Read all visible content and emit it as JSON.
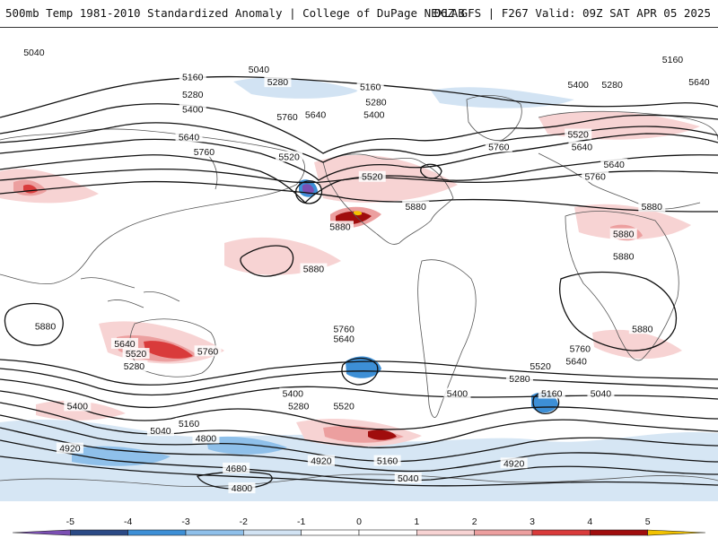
{
  "header": {
    "title": "500mb Temp 1981-2010 Standardized Anomaly | College of DuPage NEXLAB",
    "run_info": "06Z GFS | F267 Valid: 09Z SAT APR 05 2025"
  },
  "colors": {
    "neg5": "#7b4fb3",
    "neg4": "#2b4a86",
    "neg3": "#3d8fd6",
    "neg2": "#8fc0ea",
    "neg1": "#d2e3f3",
    "zero_low": "#ffffff",
    "zero_high": "#ffffff",
    "pos1": "#f7d3d3",
    "pos2": "#ec9f9f",
    "pos3": "#d93b3b",
    "pos4": "#a00d0d",
    "pos5": "#f2c200",
    "contour": "#111111",
    "coast": "#555555"
  },
  "legend": {
    "ticks": [
      "-5",
      "-4",
      "-3",
      "-2",
      "-1",
      "0",
      "1",
      "2",
      "3",
      "4",
      "5"
    ]
  },
  "contour_labels": [
    {
      "text": "5040",
      "lon": 18,
      "lat": 80
    },
    {
      "text": "5160",
      "lon": 102,
      "lat": 70
    },
    {
      "text": "5280",
      "lon": 102,
      "lat": 63
    },
    {
      "text": "5400",
      "lon": 102,
      "lat": 57
    },
    {
      "text": "5640",
      "lon": 100,
      "lat": 46
    },
    {
      "text": "5760",
      "lon": 108,
      "lat": 40
    },
    {
      "text": "5520",
      "lon": 153,
      "lat": 38
    },
    {
      "text": "5040",
      "lon": 137,
      "lat": 73
    },
    {
      "text": "5280",
      "lon": 147,
      "lat": 68
    },
    {
      "text": "5640",
      "lon": 167,
      "lat": 55
    },
    {
      "text": "5760",
      "lon": 152,
      "lat": 54
    },
    {
      "text": "5160",
      "lon": 196,
      "lat": 66
    },
    {
      "text": "5280",
      "lon": 199,
      "lat": 60
    },
    {
      "text": "5400",
      "lon": 198,
      "lat": 55
    },
    {
      "text": "5520",
      "lon": 197,
      "lat": 30
    },
    {
      "text": "5880",
      "lon": 180,
      "lat": 10
    },
    {
      "text": "5880",
      "lon": 220,
      "lat": 18
    },
    {
      "text": "5880",
      "lon": 166,
      "lat": -7
    },
    {
      "text": "5520",
      "lon": 306,
      "lat": 47
    },
    {
      "text": "5640",
      "lon": 308,
      "lat": 42
    },
    {
      "text": "5760",
      "lon": 264,
      "lat": 42
    },
    {
      "text": "5400",
      "lon": 306,
      "lat": 67
    },
    {
      "text": "5280",
      "lon": 324,
      "lat": 67
    },
    {
      "text": "5160",
      "lon": 356,
      "lat": 77
    },
    {
      "text": "5640",
      "lon": 370,
      "lat": 68
    },
    {
      "text": "5640",
      "lon": 325,
      "lat": 35
    },
    {
      "text": "5760",
      "lon": 315,
      "lat": 30
    },
    {
      "text": "5880",
      "lon": 345,
      "lat": 18
    },
    {
      "text": "5880",
      "lon": 330,
      "lat": 7
    },
    {
      "text": "5880",
      "lon": 330,
      "lat": -2
    },
    {
      "text": "5880",
      "lon": 340,
      "lat": -31
    },
    {
      "text": "5880",
      "lon": 24,
      "lat": -30
    },
    {
      "text": "5640",
      "lon": 66,
      "lat": -37
    },
    {
      "text": "5520",
      "lon": 72,
      "lat": -41
    },
    {
      "text": "5280",
      "lon": 71,
      "lat": -46
    },
    {
      "text": "5760",
      "lon": 110,
      "lat": -40
    },
    {
      "text": "5400",
      "lon": 41,
      "lat": -62
    },
    {
      "text": "5160",
      "lon": 100,
      "lat": -69
    },
    {
      "text": "5040",
      "lon": 85,
      "lat": -72
    },
    {
      "text": "4800",
      "lon": 109,
      "lat": -75
    },
    {
      "text": "4920",
      "lon": 37,
      "lat": -79
    },
    {
      "text": "4680",
      "lon": 125,
      "lat": -87
    },
    {
      "text": "4800",
      "lon": 128,
      "lat": -95
    },
    {
      "text": "5760",
      "lon": 182,
      "lat": -31
    },
    {
      "text": "5640",
      "lon": 182,
      "lat": -35
    },
    {
      "text": "5400",
      "lon": 155,
      "lat": -57
    },
    {
      "text": "5280",
      "lon": 158,
      "lat": -62
    },
    {
      "text": "5520",
      "lon": 182,
      "lat": -62
    },
    {
      "text": "4920",
      "lon": 170,
      "lat": -84
    },
    {
      "text": "5160",
      "lon": 205,
      "lat": -84
    },
    {
      "text": "5040",
      "lon": 216,
      "lat": -91
    },
    {
      "text": "5400",
      "lon": 242,
      "lat": -57
    },
    {
      "text": "5760",
      "lon": 307,
      "lat": -39
    },
    {
      "text": "5640",
      "lon": 305,
      "lat": -44
    },
    {
      "text": "5520",
      "lon": 286,
      "lat": -46
    },
    {
      "text": "5280",
      "lon": 275,
      "lat": -51
    },
    {
      "text": "5160",
      "lon": 292,
      "lat": -57
    },
    {
      "text": "5040",
      "lon": 318,
      "lat": -57
    },
    {
      "text": "4920",
      "lon": 272,
      "lat": -85
    }
  ]
}
